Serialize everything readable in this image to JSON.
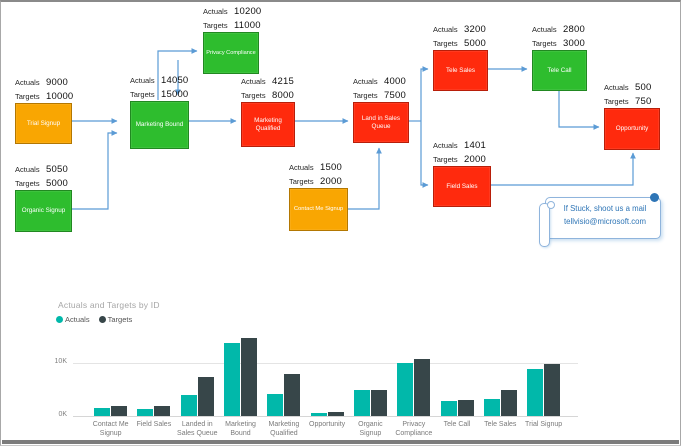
{
  "diagram": {
    "field_labels": {
      "actuals": "Actuals",
      "targets": "Targets"
    },
    "nodes": [
      {
        "id": "trial-signup",
        "label": "Trial Signup",
        "actuals": "9000",
        "targets": "10000",
        "color": "#F9A602"
      },
      {
        "id": "organic-signup",
        "label": "Organic Signup",
        "actuals": "5050",
        "targets": "5000",
        "color": "#2EBD2E"
      },
      {
        "id": "marketing-bound",
        "label": "Marketing Bound",
        "actuals": "14050",
        "targets": "15000",
        "color": "#2EBD2E"
      },
      {
        "id": "privacy-compliance",
        "label": "Privacy Compliance",
        "actuals": "10200",
        "targets": "11000",
        "color": "#2EBD2E"
      },
      {
        "id": "marketing-qualified",
        "label": "Marketing Qualified",
        "actuals": "4215",
        "targets": "8000",
        "color": "#FF2A0D"
      },
      {
        "id": "land-in-sales-queue",
        "label": "Land in Sales Queue",
        "actuals": "4000",
        "targets": "7500",
        "color": "#FF2A0D"
      },
      {
        "id": "contact-me-signup",
        "label": "Contact Me Signup",
        "actuals": "1500",
        "targets": "2000",
        "color": "#F9A602"
      },
      {
        "id": "tele-sales",
        "label": "Tele Sales",
        "actuals": "3200",
        "targets": "5000",
        "color": "#FF2A0D"
      },
      {
        "id": "tele-call",
        "label": "Tele Call",
        "actuals": "2800",
        "targets": "3000",
        "color": "#2EBD2E"
      },
      {
        "id": "field-sales",
        "label": "Field Sales",
        "actuals": "1401",
        "targets": "2000",
        "color": "#FF2A0D"
      },
      {
        "id": "opportunity",
        "label": "Opportunity",
        "actuals": "500",
        "targets": "750",
        "color": "#FF2A0D"
      }
    ],
    "connector_color": "#5B9BD5",
    "callout": {
      "line1": "If Stuck, shoot us a mail",
      "line2": "tellvisio@microsoft.com",
      "text_color": "#2E75B6"
    }
  },
  "chart_data": {
    "type": "bar",
    "title": "Actuals and Targets by ID",
    "categories": [
      "Contact Me Signup",
      "Field Sales",
      "Landed in Sales Queue",
      "Marketing Bound",
      "Marketing Qualified",
      "Opportunity",
      "Organic Signup",
      "Privacy Compliance",
      "Tele Call",
      "Tele Sales",
      "Trial Signup"
    ],
    "series": [
      {
        "name": "Actuals",
        "color": "#01B8AA",
        "values": [
          1500,
          1401,
          4000,
          14050,
          4215,
          500,
          5050,
          10200,
          2800,
          3200,
          9000
        ]
      },
      {
        "name": "Targets",
        "color": "#374649",
        "values": [
          2000,
          2000,
          7500,
          15000,
          8000,
          750,
          5000,
          11000,
          3000,
          5000,
          10000
        ]
      }
    ],
    "y_ticks": [
      "0K",
      "10K"
    ],
    "ylim": [
      0,
      16000
    ],
    "grid": "horizontal line at 10K only",
    "legend_position": "top-left",
    "xlabel": "",
    "ylabel": ""
  }
}
